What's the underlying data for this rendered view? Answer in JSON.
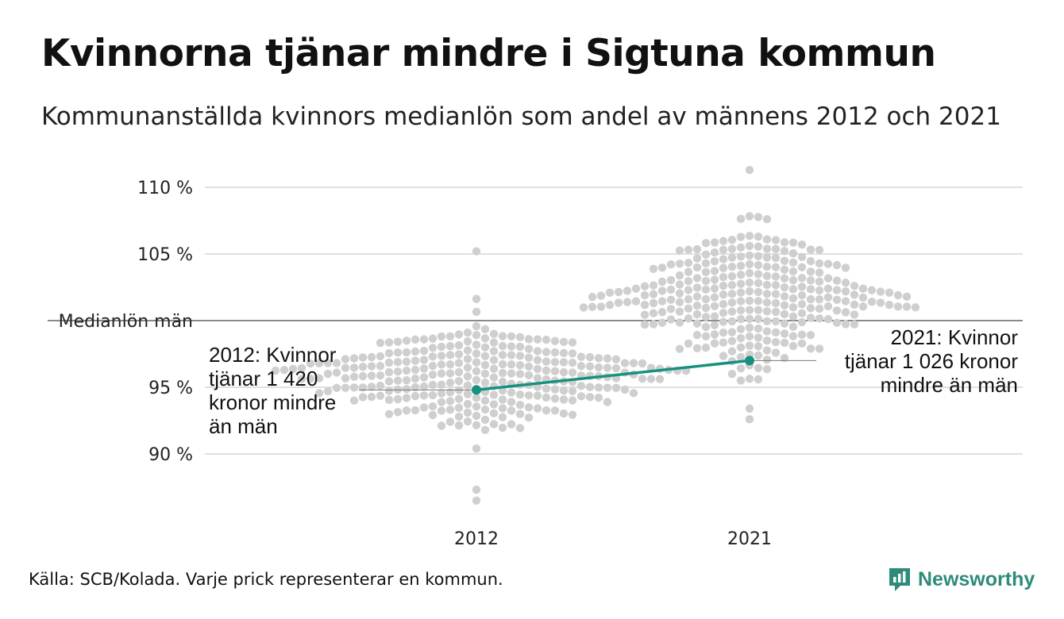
{
  "header": {
    "title": "Kvinnorna tjänar mindre i Sigtuna kommun",
    "subtitle": "Kommunanställda kvinnors medianlön som andel av männens 2012 och 2021"
  },
  "footer": {
    "source": "Källa: SCB/Kolada. Varje prick representerar en kommun."
  },
  "brand": {
    "name": "Newsworthy",
    "icon": "newsworthy-logo-icon",
    "color": "#2e8b7a"
  },
  "annotations": {
    "a2012": "2012: Kvinnor\ntjänar 1 420\nkronor mindre\nän män",
    "a2021": "2021: Kvinnor\ntjänar 1 026 kronor\nmindre än män"
  },
  "chart_data": {
    "type": "scatter",
    "subtype": "beeswarm",
    "title": "Kvinnorna tjänar mindre i Sigtuna kommun",
    "subtitle": "Kommunanställda kvinnors medianlön som andel av männens 2012 och 2021",
    "categories": [
      "2012",
      "2021"
    ],
    "yticks": [
      {
        "value": 110,
        "label": "110 %"
      },
      {
        "value": 105,
        "label": "105 %"
      },
      {
        "value": 100,
        "label": "Medianlön män"
      },
      {
        "value": 95,
        "label": "95 %"
      },
      {
        "value": 90,
        "label": "90 %"
      }
    ],
    "ylim": [
      86,
      111.5
    ],
    "reference_line": {
      "value": 100,
      "label": "Medianlön män"
    },
    "grid": true,
    "colors": {
      "dots": "#cfcfcf",
      "highlight": "#17917f",
      "grid": "#e0e0e0",
      "reference": "#444444"
    },
    "distribution_2012": {
      "center": 95.8,
      "sd": 2.1,
      "count": 290,
      "min": 86.5,
      "max": 105.2
    },
    "distribution_2021": {
      "center": 101.8,
      "sd": 2.5,
      "count": 290,
      "min": 92.6,
      "max": 111.3
    },
    "highlight": {
      "name": "Sigtuna",
      "points": [
        {
          "x": "2012",
          "y": 94.8
        },
        {
          "x": "2021",
          "y": 97.0
        }
      ]
    }
  }
}
